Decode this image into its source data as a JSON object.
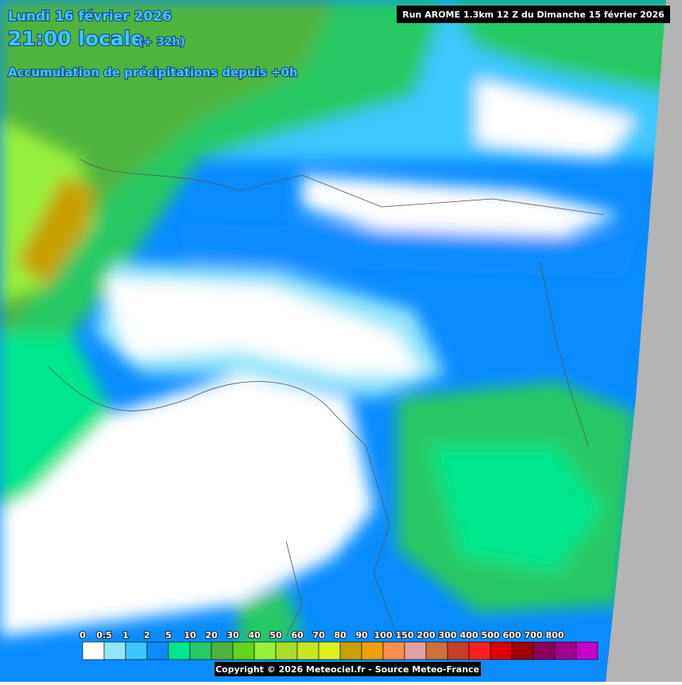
{
  "header": {
    "date": "Lundi 16 février 2026",
    "time": "21:00 locale",
    "offset": "(+ 32h)",
    "subtitle": "Accumulation de précipitations depuis +0h",
    "run": "Run AROME 1.3km 12 Z du Dimanche 15 février 2026"
  },
  "legend": {
    "labels": [
      "0",
      "0.5",
      "1",
      "2",
      "5",
      "10",
      "20",
      "30",
      "40",
      "50",
      "60",
      "70",
      "80",
      "90",
      "100",
      "150",
      "200",
      "300",
      "400",
      "500",
      "600",
      "700",
      "800"
    ],
    "colors": [
      "#ffffff",
      "#96e6fa",
      "#3cc8ff",
      "#0a8cff",
      "#00e68c",
      "#28c864",
      "#50b43c",
      "#64d21e",
      "#96f03c",
      "#aadc28",
      "#c8e61e",
      "#dcf01e",
      "#c8a000",
      "#f0a000",
      "#ff8c50",
      "#e6a0a0",
      "#d26e3c",
      "#c83c28",
      "#ff1e1e",
      "#dc0000",
      "#a00000",
      "#8c005a",
      "#a0008c",
      "#c800c8"
    ]
  },
  "footer": {
    "copyright": "Copyright © 2026 Meteociel.fr - Source Meteo-France"
  }
}
